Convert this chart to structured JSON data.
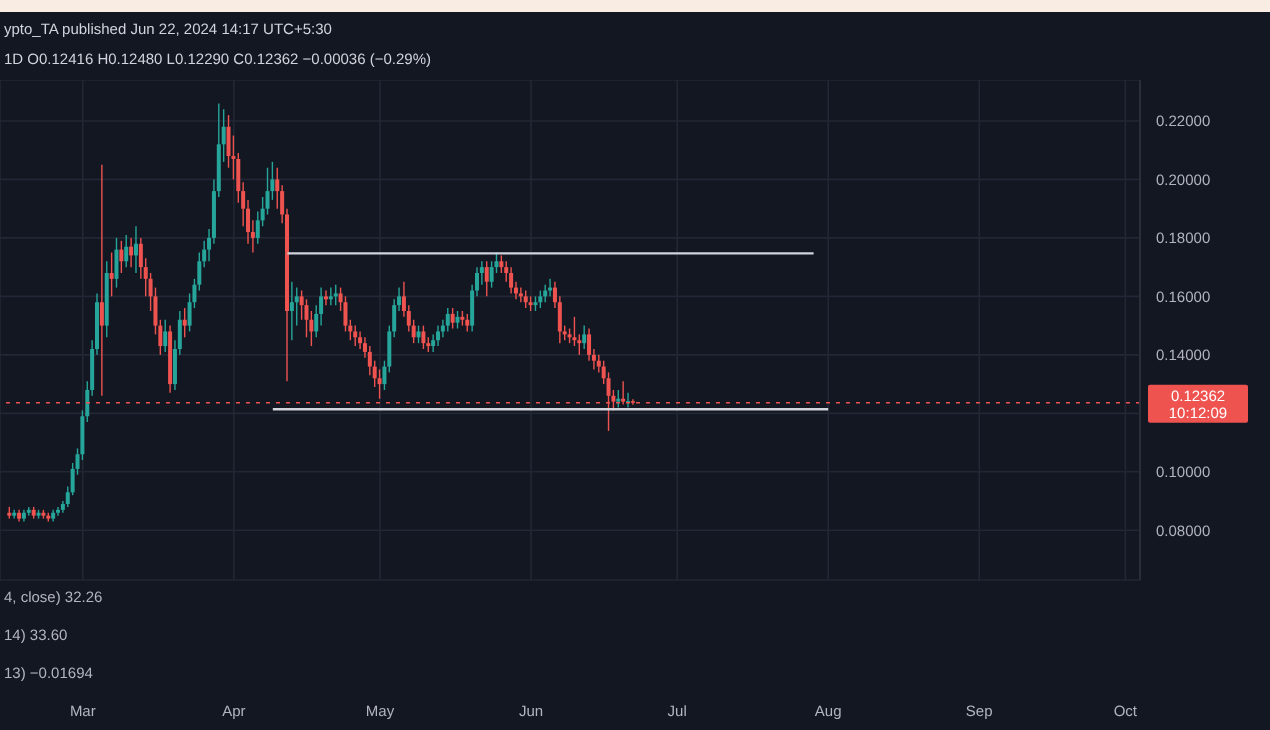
{
  "chart_data": {
    "type": "candlestick",
    "annotations": [
      "ypto_TA published Jun 22, 2024 14:17 UTC+5:30",
      "1D  O0.12416 H0.12480 L0.12290 C0.12362 −0.00036 (−0.29%)",
      "4, close) 32.26",
      "14) 33.60",
      "13) −0.01694",
      "0.12362",
      "10:12:09"
    ],
    "x": [
      "2024-02-15",
      "2024-02-16",
      "2024-02-17",
      "2024-02-18",
      "2024-02-19",
      "2024-02-20",
      "2024-02-21",
      "2024-02-22",
      "2024-02-23",
      "2024-02-24",
      "2024-02-25",
      "2024-02-26",
      "2024-02-27",
      "2024-02-28",
      "2024-02-29",
      "2024-03-01",
      "2024-03-02",
      "2024-03-03",
      "2024-03-04",
      "2024-03-05",
      "2024-03-06",
      "2024-03-07",
      "2024-03-08",
      "2024-03-09",
      "2024-03-10",
      "2024-03-11",
      "2024-03-12",
      "2024-03-13",
      "2024-03-14",
      "2024-03-15",
      "2024-03-16",
      "2024-03-17",
      "2024-03-18",
      "2024-03-19",
      "2024-03-20",
      "2024-03-21",
      "2024-03-22",
      "2024-03-23",
      "2024-03-24",
      "2024-03-25",
      "2024-03-26",
      "2024-03-27",
      "2024-03-28",
      "2024-03-29",
      "2024-03-30",
      "2024-03-31",
      "2024-04-01",
      "2024-04-02",
      "2024-04-03",
      "2024-04-04",
      "2024-04-05",
      "2024-04-06",
      "2024-04-07",
      "2024-04-08",
      "2024-04-09",
      "2024-04-10",
      "2024-04-11",
      "2024-04-12",
      "2024-04-13",
      "2024-04-14",
      "2024-04-15",
      "2024-04-16",
      "2024-04-17",
      "2024-04-18",
      "2024-04-19",
      "2024-04-20",
      "2024-04-21",
      "2024-04-22",
      "2024-04-23",
      "2024-04-24",
      "2024-04-25",
      "2024-04-26",
      "2024-04-27",
      "2024-04-28",
      "2024-04-29",
      "2024-04-30",
      "2024-05-01",
      "2024-05-02",
      "2024-05-03",
      "2024-05-04",
      "2024-05-05",
      "2024-05-06",
      "2024-05-07",
      "2024-05-08",
      "2024-05-09",
      "2024-05-10",
      "2024-05-11",
      "2024-05-12",
      "2024-05-13",
      "2024-05-14",
      "2024-05-15",
      "2024-05-16",
      "2024-05-17",
      "2024-05-18",
      "2024-05-19",
      "2024-05-20",
      "2024-05-21",
      "2024-05-22",
      "2024-05-23",
      "2024-05-24",
      "2024-05-25",
      "2024-05-26",
      "2024-05-27",
      "2024-05-28",
      "2024-05-29",
      "2024-05-30",
      "2024-05-31",
      "2024-06-01",
      "2024-06-02",
      "2024-06-03",
      "2024-06-04",
      "2024-06-05",
      "2024-06-06",
      "2024-06-07",
      "2024-06-08",
      "2024-06-09",
      "2024-06-10",
      "2024-06-11",
      "2024-06-12",
      "2024-06-13",
      "2024-06-14",
      "2024-06-15",
      "2024-06-16",
      "2024-06-17",
      "2024-06-18",
      "2024-06-19",
      "2024-06-20",
      "2024-06-21",
      "2024-06-22"
    ],
    "ohlc": [
      [
        0.086,
        0.088,
        0.084,
        0.085
      ],
      [
        0.085,
        0.087,
        0.084,
        0.086
      ],
      [
        0.086,
        0.087,
        0.083,
        0.084
      ],
      [
        0.084,
        0.087,
        0.083,
        0.086
      ],
      [
        0.086,
        0.088,
        0.085,
        0.087
      ],
      [
        0.087,
        0.088,
        0.084,
        0.085
      ],
      [
        0.085,
        0.087,
        0.084,
        0.086
      ],
      [
        0.086,
        0.087,
        0.084,
        0.085
      ],
      [
        0.085,
        0.086,
        0.083,
        0.084
      ],
      [
        0.084,
        0.087,
        0.083,
        0.086
      ],
      [
        0.086,
        0.088,
        0.085,
        0.087
      ],
      [
        0.087,
        0.09,
        0.086,
        0.089
      ],
      [
        0.089,
        0.095,
        0.088,
        0.093
      ],
      [
        0.093,
        0.103,
        0.092,
        0.101
      ],
      [
        0.101,
        0.108,
        0.099,
        0.106
      ],
      [
        0.106,
        0.121,
        0.104,
        0.119
      ],
      [
        0.119,
        0.131,
        0.117,
        0.128
      ],
      [
        0.128,
        0.145,
        0.126,
        0.142
      ],
      [
        0.142,
        0.161,
        0.14,
        0.158
      ],
      [
        0.158,
        0.205,
        0.126,
        0.15
      ],
      [
        0.15,
        0.172,
        0.146,
        0.168
      ],
      [
        0.168,
        0.175,
        0.16,
        0.166
      ],
      [
        0.166,
        0.18,
        0.163,
        0.176
      ],
      [
        0.176,
        0.179,
        0.168,
        0.172
      ],
      [
        0.172,
        0.181,
        0.17,
        0.177
      ],
      [
        0.177,
        0.18,
        0.17,
        0.174
      ],
      [
        0.174,
        0.184,
        0.168,
        0.178
      ],
      [
        0.178,
        0.18,
        0.166,
        0.17
      ],
      [
        0.17,
        0.173,
        0.16,
        0.166
      ],
      [
        0.166,
        0.168,
        0.155,
        0.16
      ],
      [
        0.16,
        0.163,
        0.147,
        0.15
      ],
      [
        0.15,
        0.152,
        0.14,
        0.143
      ],
      [
        0.143,
        0.152,
        0.141,
        0.148
      ],
      [
        0.148,
        0.15,
        0.127,
        0.13
      ],
      [
        0.13,
        0.145,
        0.128,
        0.142
      ],
      [
        0.142,
        0.155,
        0.14,
        0.152
      ],
      [
        0.152,
        0.156,
        0.146,
        0.15
      ],
      [
        0.15,
        0.161,
        0.148,
        0.158
      ],
      [
        0.158,
        0.166,
        0.156,
        0.164
      ],
      [
        0.164,
        0.175,
        0.162,
        0.172
      ],
      [
        0.172,
        0.179,
        0.17,
        0.176
      ],
      [
        0.176,
        0.183,
        0.172,
        0.18
      ],
      [
        0.18,
        0.2,
        0.178,
        0.196
      ],
      [
        0.196,
        0.226,
        0.194,
        0.212
      ],
      [
        0.212,
        0.224,
        0.206,
        0.218
      ],
      [
        0.218,
        0.222,
        0.204,
        0.208
      ],
      [
        0.208,
        0.215,
        0.2,
        0.207
      ],
      [
        0.207,
        0.209,
        0.192,
        0.196
      ],
      [
        0.196,
        0.199,
        0.184,
        0.19
      ],
      [
        0.19,
        0.193,
        0.178,
        0.182
      ],
      [
        0.182,
        0.186,
        0.175,
        0.18
      ],
      [
        0.18,
        0.189,
        0.178,
        0.186
      ],
      [
        0.186,
        0.194,
        0.184,
        0.19
      ],
      [
        0.19,
        0.204,
        0.188,
        0.196
      ],
      [
        0.196,
        0.206,
        0.193,
        0.2
      ],
      [
        0.2,
        0.204,
        0.19,
        0.196
      ],
      [
        0.196,
        0.198,
        0.185,
        0.188
      ],
      [
        0.188,
        0.19,
        0.131,
        0.155
      ],
      [
        0.155,
        0.165,
        0.145,
        0.158
      ],
      [
        0.158,
        0.163,
        0.15,
        0.16
      ],
      [
        0.16,
        0.162,
        0.152,
        0.157
      ],
      [
        0.157,
        0.159,
        0.146,
        0.152
      ],
      [
        0.152,
        0.155,
        0.143,
        0.148
      ],
      [
        0.148,
        0.157,
        0.146,
        0.154
      ],
      [
        0.154,
        0.163,
        0.15,
        0.16
      ],
      [
        0.16,
        0.162,
        0.157,
        0.159
      ],
      [
        0.159,
        0.163,
        0.157,
        0.16
      ],
      [
        0.16,
        0.164,
        0.157,
        0.161
      ],
      [
        0.161,
        0.163,
        0.155,
        0.158
      ],
      [
        0.158,
        0.16,
        0.148,
        0.15
      ],
      [
        0.15,
        0.152,
        0.145,
        0.148
      ],
      [
        0.148,
        0.15,
        0.143,
        0.146
      ],
      [
        0.146,
        0.148,
        0.142,
        0.144
      ],
      [
        0.144,
        0.146,
        0.139,
        0.141
      ],
      [
        0.141,
        0.143,
        0.133,
        0.136
      ],
      [
        0.136,
        0.138,
        0.129,
        0.132
      ],
      [
        0.132,
        0.135,
        0.125,
        0.13
      ],
      [
        0.13,
        0.138,
        0.128,
        0.136
      ],
      [
        0.136,
        0.15,
        0.134,
        0.148
      ],
      [
        0.148,
        0.159,
        0.146,
        0.157
      ],
      [
        0.157,
        0.163,
        0.155,
        0.16
      ],
      [
        0.16,
        0.165,
        0.153,
        0.155
      ],
      [
        0.155,
        0.157,
        0.148,
        0.15
      ],
      [
        0.15,
        0.152,
        0.144,
        0.146
      ],
      [
        0.146,
        0.15,
        0.144,
        0.148
      ],
      [
        0.148,
        0.15,
        0.142,
        0.144
      ],
      [
        0.144,
        0.146,
        0.141,
        0.143
      ],
      [
        0.143,
        0.147,
        0.141,
        0.145
      ],
      [
        0.145,
        0.15,
        0.143,
        0.148
      ],
      [
        0.148,
        0.152,
        0.146,
        0.15
      ],
      [
        0.15,
        0.156,
        0.148,
        0.154
      ],
      [
        0.154,
        0.156,
        0.149,
        0.151
      ],
      [
        0.151,
        0.155,
        0.149,
        0.153
      ],
      [
        0.153,
        0.155,
        0.15,
        0.152
      ],
      [
        0.152,
        0.154,
        0.148,
        0.15
      ],
      [
        0.15,
        0.164,
        0.148,
        0.162
      ],
      [
        0.162,
        0.17,
        0.16,
        0.168
      ],
      [
        0.168,
        0.172,
        0.164,
        0.17
      ],
      [
        0.17,
        0.172,
        0.16,
        0.165
      ],
      [
        0.165,
        0.172,
        0.163,
        0.17
      ],
      [
        0.17,
        0.175,
        0.168,
        0.172
      ],
      [
        0.172,
        0.174,
        0.168,
        0.17
      ],
      [
        0.17,
        0.172,
        0.165,
        0.168
      ],
      [
        0.168,
        0.17,
        0.161,
        0.163
      ],
      [
        0.163,
        0.165,
        0.159,
        0.161
      ],
      [
        0.161,
        0.163,
        0.158,
        0.16
      ],
      [
        0.16,
        0.162,
        0.156,
        0.158
      ],
      [
        0.158,
        0.16,
        0.155,
        0.157
      ],
      [
        0.157,
        0.16,
        0.155,
        0.158
      ],
      [
        0.158,
        0.162,
        0.156,
        0.16
      ],
      [
        0.16,
        0.164,
        0.158,
        0.162
      ],
      [
        0.162,
        0.166,
        0.16,
        0.163
      ],
      [
        0.163,
        0.165,
        0.156,
        0.158
      ],
      [
        0.158,
        0.16,
        0.144,
        0.148
      ],
      [
        0.148,
        0.15,
        0.145,
        0.147
      ],
      [
        0.147,
        0.149,
        0.144,
        0.146
      ],
      [
        0.146,
        0.153,
        0.143,
        0.145
      ],
      [
        0.145,
        0.147,
        0.14,
        0.144
      ],
      [
        0.144,
        0.15,
        0.142,
        0.147
      ],
      [
        0.147,
        0.149,
        0.138,
        0.14
      ],
      [
        0.14,
        0.142,
        0.135,
        0.138
      ],
      [
        0.138,
        0.14,
        0.134,
        0.136
      ],
      [
        0.136,
        0.138,
        0.13,
        0.132
      ],
      [
        0.132,
        0.134,
        0.114,
        0.126
      ],
      [
        0.126,
        0.128,
        0.121,
        0.124
      ],
      [
        0.124,
        0.128,
        0.122,
        0.125
      ],
      [
        0.125,
        0.131,
        0.123,
        0.124
      ],
      [
        0.124,
        0.127,
        0.122,
        0.1242
      ],
      [
        0.12416,
        0.1248,
        0.1229,
        0.12362
      ]
    ],
    "colors": [
      "#ef5350",
      "#26a69a",
      "#ef5350",
      "#26a69a",
      "#26a69a",
      "#ef5350",
      "#26a69a",
      "#ef5350",
      "#ef5350",
      "#26a69a",
      "#26a69a",
      "#26a69a",
      "#26a69a",
      "#26a69a",
      "#26a69a",
      "#26a69a",
      "#26a69a",
      "#26a69a",
      "#26a69a",
      "#ef5350",
      "#26a69a",
      "#ef5350",
      "#26a69a",
      "#ef5350",
      "#26a69a",
      "#ef5350",
      "#26a69a",
      "#ef5350",
      "#ef5350",
      "#ef5350",
      "#ef5350",
      "#ef5350",
      "#26a69a",
      "#ef5350",
      "#26a69a",
      "#26a69a",
      "#ef5350",
      "#26a69a",
      "#26a69a",
      "#26a69a",
      "#26a69a",
      "#26a69a",
      "#26a69a",
      "#26a69a",
      "#26a69a",
      "#ef5350",
      "#ef5350",
      "#ef5350",
      "#ef5350",
      "#ef5350",
      "#ef5350",
      "#26a69a",
      "#26a69a",
      "#26a69a",
      "#26a69a",
      "#ef5350",
      "#ef5350",
      "#ef5350",
      "#26a69a",
      "#26a69a",
      "#ef5350",
      "#ef5350",
      "#ef5350",
      "#26a69a",
      "#26a69a",
      "#ef5350",
      "#26a69a",
      "#26a69a",
      "#ef5350",
      "#ef5350",
      "#ef5350",
      "#ef5350",
      "#ef5350",
      "#ef5350",
      "#ef5350",
      "#ef5350",
      "#ef5350",
      "#26a69a",
      "#26a69a",
      "#26a69a",
      "#26a69a",
      "#ef5350",
      "#ef5350",
      "#ef5350",
      "#26a69a",
      "#ef5350",
      "#ef5350",
      "#26a69a",
      "#26a69a",
      "#26a69a",
      "#26a69a",
      "#ef5350",
      "#26a69a",
      "#ef5350",
      "#ef5350",
      "#26a69a",
      "#26a69a",
      "#26a69a",
      "#ef5350",
      "#26a69a",
      "#26a69a",
      "#ef5350",
      "#ef5350",
      "#ef5350",
      "#ef5350",
      "#ef5350",
      "#ef5350",
      "#ef5350",
      "#26a69a",
      "#26a69a",
      "#26a69a",
      "#26a69a",
      "#ef5350",
      "#ef5350",
      "#ef5350",
      "#ef5350",
      "#ef5350",
      "#ef5350",
      "#26a69a",
      "#ef5350",
      "#ef5350",
      "#ef5350",
      "#ef5350",
      "#ef5350",
      "#ef5350",
      "#26a69a",
      "#ef5350",
      "#26a69a",
      "#ef5350"
    ],
    "series": [
      {
        "type": "line",
        "color": "#d1d4dc",
        "x": [
          "2024-04-12",
          "2024-07-29"
        ],
        "values": [
          0.1747,
          0.1747
        ]
      },
      {
        "type": "line",
        "color": "#d1d4dc",
        "x": [
          "2024-04-09",
          "2024-08-01"
        ],
        "values": [
          0.1214,
          0.1214
        ]
      }
    ],
    "ref_lines": [
      {
        "axis": "y",
        "value": 0.12362,
        "color": "#ef5350",
        "line_style": "dotted"
      }
    ],
    "xlim": [
      "2024-02-13",
      "2024-10-04"
    ],
    "xticks": [
      {
        "value": "2024-03-01",
        "label": "Mar"
      },
      {
        "value": "2024-04-01",
        "label": "Apr"
      },
      {
        "value": "2024-05-01",
        "label": "May"
      },
      {
        "value": "2024-06-01",
        "label": "Jun"
      },
      {
        "value": "2024-07-01",
        "label": "Jul"
      },
      {
        "value": "2024-08-01",
        "label": "Aug"
      },
      {
        "value": "2024-09-01",
        "label": "Sep"
      },
      {
        "value": "2024-10-01",
        "label": "Oct"
      }
    ],
    "ylim": [
      0.063,
      0.234
    ],
    "yticks": [
      {
        "value": 0.08,
        "label": "0.08000"
      },
      {
        "value": 0.1,
        "label": "0.10000"
      },
      {
        "value": 0.12,
        "label": null
      },
      {
        "value": 0.14,
        "label": "0.14000"
      },
      {
        "value": 0.16,
        "label": "0.16000"
      },
      {
        "value": 0.18,
        "label": "0.18000"
      },
      {
        "value": 0.2,
        "label": "0.20000"
      },
      {
        "value": 0.22,
        "label": "0.22000"
      }
    ],
    "grid": true,
    "legend": false
  }
}
